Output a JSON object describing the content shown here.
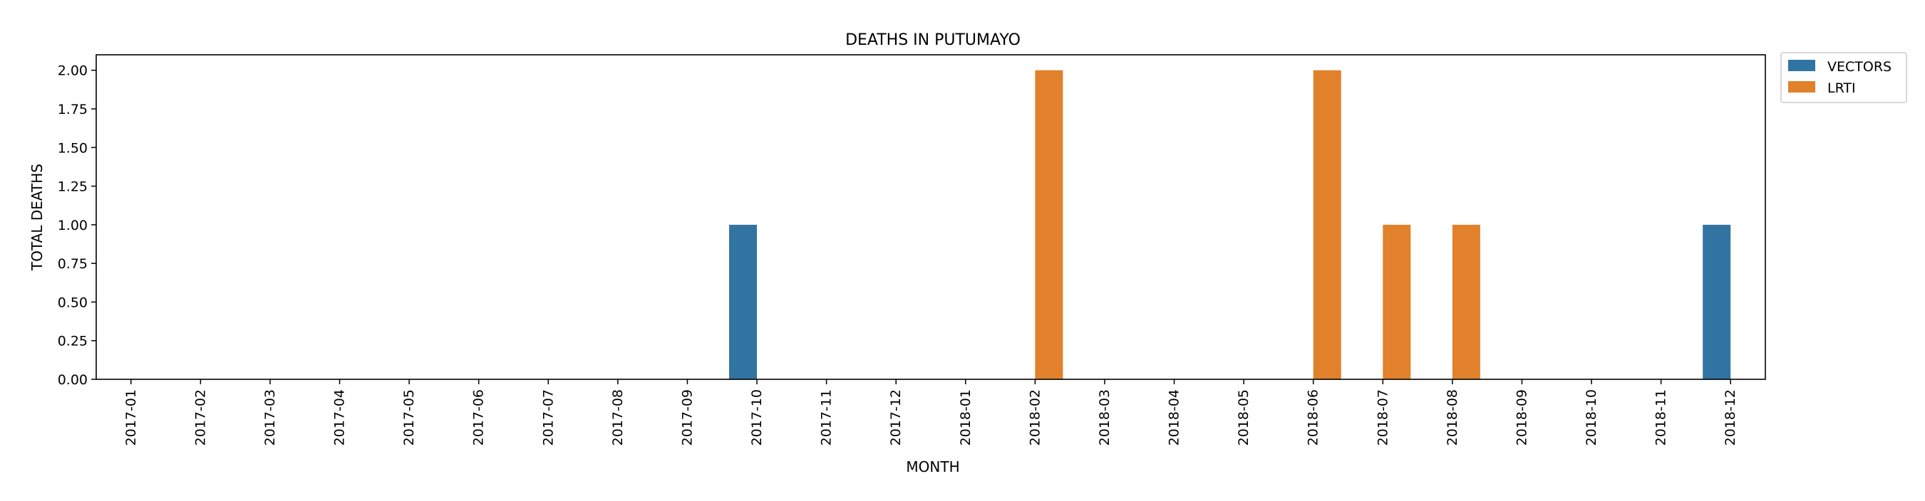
{
  "chart_data": {
    "type": "bar",
    "title": "DEATHS IN PUTUMAYO",
    "xlabel": "MONTH",
    "ylabel": "TOTAL DEATHS",
    "categories": [
      "2017-01",
      "2017-02",
      "2017-03",
      "2017-04",
      "2017-05",
      "2017-06",
      "2017-07",
      "2017-08",
      "2017-09",
      "2017-10",
      "2017-11",
      "2017-12",
      "2018-01",
      "2018-02",
      "2018-03",
      "2018-04",
      "2018-05",
      "2018-06",
      "2018-07",
      "2018-08",
      "2018-09",
      "2018-10",
      "2018-11",
      "2018-12"
    ],
    "series": [
      {
        "name": "VECTORS",
        "color": "#3274a1",
        "values": [
          0,
          0,
          0,
          0,
          0,
          0,
          0,
          0,
          0,
          1,
          0,
          0,
          0,
          0,
          0,
          0,
          0,
          0,
          0,
          0,
          0,
          0,
          0,
          1
        ]
      },
      {
        "name": "LRTI",
        "color": "#e1812c",
        "values": [
          0,
          0,
          0,
          0,
          0,
          0,
          0,
          0,
          0,
          0,
          0,
          0,
          0,
          2,
          0,
          0,
          0,
          2,
          1,
          1,
          0,
          0,
          0,
          0
        ]
      }
    ],
    "ylim": [
      0,
      2.1
    ],
    "yticks": [
      "0.00",
      "0.25",
      "0.50",
      "0.75",
      "1.00",
      "1.25",
      "1.50",
      "1.75",
      "2.00"
    ],
    "grid": false,
    "legend_position": "outside-top-right"
  }
}
